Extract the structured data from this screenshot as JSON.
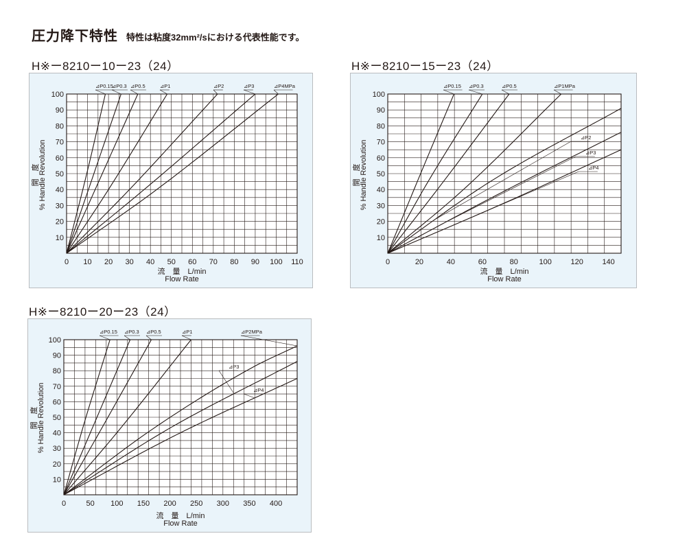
{
  "header": {
    "title": "圧力降下特性",
    "subtitle": "特性は粘度32mm²/sにおける代表性能です。"
  },
  "chart_data": [
    {
      "type": "line",
      "heading": "H※ー8210ー10ー23（24）",
      "xlabel_jp": "流　量　L/min",
      "xlabel_en": "Flow Rate",
      "ylabel_jp": "開　度",
      "ylabel_en": "% Handle Revolution",
      "xlim": [
        0,
        110
      ],
      "ylim": [
        0,
        100
      ],
      "x_ticks": [
        0,
        10,
        20,
        30,
        40,
        50,
        60,
        70,
        80,
        90,
        100,
        110
      ],
      "y_ticks": [
        10,
        20,
        30,
        40,
        50,
        60,
        70,
        80,
        90,
        100
      ],
      "grid": true,
      "series": [
        {
          "name": "⊿P0.15",
          "x": [
            0,
            10,
            18.5
          ],
          "y": [
            0,
            52,
            100
          ]
        },
        {
          "name": "⊿P0.3",
          "x": [
            0,
            12,
            26
          ],
          "y": [
            0,
            46,
            100
          ]
        },
        {
          "name": "⊿P0.5",
          "x": [
            0,
            15,
            34
          ],
          "y": [
            0,
            44,
            100
          ]
        },
        {
          "name": "⊿P1",
          "x": [
            0,
            20,
            48
          ],
          "y": [
            0,
            40,
            100
          ]
        },
        {
          "name": "⊿P2",
          "x": [
            0,
            30,
            72
          ],
          "y": [
            0,
            40,
            100
          ]
        },
        {
          "name": "⊿P3",
          "x": [
            0,
            37,
            90
          ],
          "y": [
            0,
            40,
            100
          ]
        },
        {
          "name": "⊿P4MPa",
          "x": [
            0,
            42,
            101
          ],
          "y": [
            0,
            39,
            100
          ]
        }
      ]
    },
    {
      "type": "line",
      "heading": "H※ー8210ー15ー23（24）",
      "xlabel_jp": "流　量　L/min",
      "xlabel_en": "Flow Rate",
      "ylabel_jp": "開　度",
      "ylabel_en": "% Handle Revolution",
      "xlim": [
        0,
        148
      ],
      "ylim": [
        0,
        100
      ],
      "x_ticks": [
        0,
        20,
        40,
        60,
        80,
        100,
        120,
        140
      ],
      "y_ticks": [
        10,
        20,
        30,
        40,
        50,
        60,
        70,
        80,
        90,
        100
      ],
      "grid": true,
      "series": [
        {
          "name": "⊿P0.15",
          "x": [
            0,
            20,
            42
          ],
          "y": [
            0,
            48,
            100
          ]
        },
        {
          "name": "⊿P0.3",
          "x": [
            0,
            25,
            60
          ],
          "y": [
            0,
            44,
            100
          ]
        },
        {
          "name": "⊿P0.5",
          "x": [
            0,
            33,
            77
          ],
          "y": [
            0,
            42,
            100
          ]
        },
        {
          "name": "⊿P1MPa",
          "x": [
            0,
            48,
            110
          ],
          "y": [
            0,
            40,
            100
          ]
        },
        {
          "name": "⊿P2",
          "x": [
            0,
            65,
            148
          ],
          "y": [
            0,
            45,
            91
          ]
        },
        {
          "name": "⊿P3",
          "x": [
            0,
            70,
            148
          ],
          "y": [
            0,
            37,
            76
          ]
        },
        {
          "name": "⊿P4",
          "x": [
            0,
            75,
            148
          ],
          "y": [
            0,
            32,
            65
          ]
        }
      ]
    },
    {
      "type": "line",
      "heading": "H※ー8210ー20ー23（24）",
      "xlabel_jp": "流　量　L/min",
      "xlabel_en": "Flow Rate",
      "ylabel_jp": "開　度",
      "ylabel_en": "% Handle Revolution",
      "xlim": [
        0,
        440
      ],
      "ylim": [
        0,
        100
      ],
      "x_ticks": [
        0,
        50,
        100,
        150,
        200,
        250,
        300,
        350,
        400
      ],
      "y_ticks": [
        10,
        20,
        30,
        40,
        50,
        60,
        70,
        80,
        90,
        100
      ],
      "grid": true,
      "series": [
        {
          "name": "⊿P0.15",
          "x": [
            0,
            40,
            87
          ],
          "y": [
            0,
            48,
            100
          ]
        },
        {
          "name": "⊿P0.3",
          "x": [
            0,
            55,
            125
          ],
          "y": [
            0,
            44,
            100
          ]
        },
        {
          "name": "⊿P0.5",
          "x": [
            0,
            70,
            165
          ],
          "y": [
            0,
            42,
            100
          ]
        },
        {
          "name": "⊿P1",
          "x": [
            0,
            100,
            240
          ],
          "y": [
            0,
            40,
            100
          ]
        },
        {
          "name": "⊿P2MPa",
          "x": [
            0,
            170,
            355,
            440
          ],
          "y": [
            0,
            43,
            82,
            96
          ]
        },
        {
          "name": "⊿P3",
          "x": [
            0,
            200,
            440
          ],
          "y": [
            0,
            43,
            86
          ]
        },
        {
          "name": "⊿P4",
          "x": [
            0,
            220,
            440
          ],
          "y": [
            0,
            40,
            75
          ]
        }
      ]
    }
  ]
}
